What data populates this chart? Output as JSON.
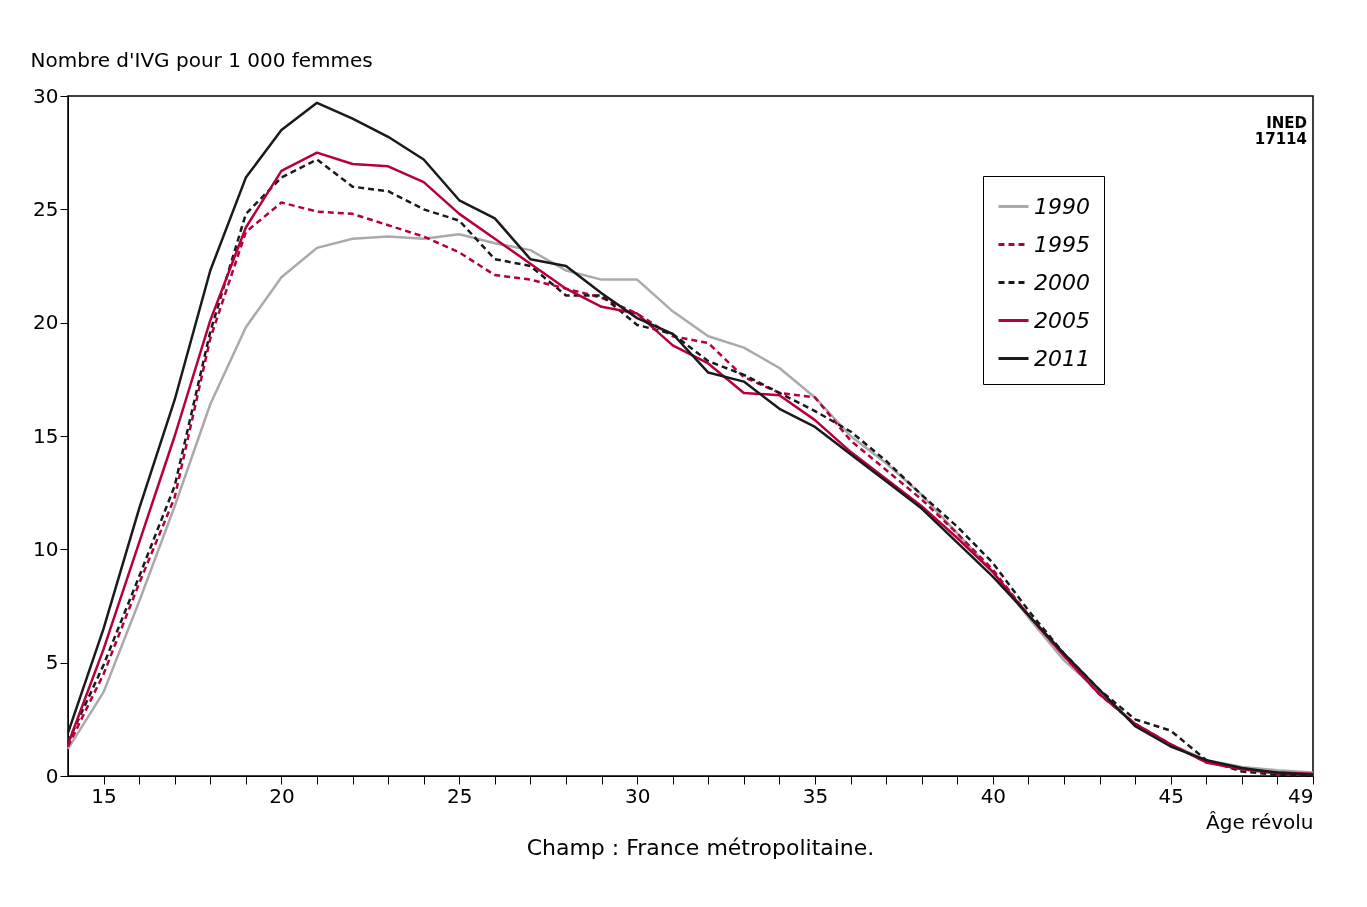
{
  "chart_data": {
    "type": "line",
    "ylabel": "Nombre d'IVG pour 1 000 femmes",
    "xlabel": "Âge révolu",
    "x": [
      14,
      15,
      16,
      17,
      18,
      19,
      20,
      21,
      22,
      23,
      24,
      25,
      26,
      27,
      28,
      29,
      30,
      31,
      32,
      33,
      34,
      35,
      36,
      37,
      38,
      39,
      40,
      41,
      42,
      43,
      44,
      45,
      46,
      47,
      48,
      49
    ],
    "series": [
      {
        "name": "1990",
        "color": "#aaaaaa",
        "line_style": "solid",
        "values": [
          1.2,
          3.7,
          7.7,
          11.9,
          16.4,
          19.8,
          22.0,
          23.3,
          23.7,
          23.8,
          23.7,
          23.9,
          23.5,
          23.2,
          22.3,
          21.9,
          21.9,
          20.5,
          19.4,
          18.9,
          18.0,
          16.7,
          15.0,
          13.8,
          12.4,
          10.7,
          9.0,
          7.0,
          5.1,
          3.7,
          2.3,
          1.4,
          0.7,
          0.4,
          0.25,
          0.15
        ]
      },
      {
        "name": "1995",
        "color": "#b5003a",
        "line_style": "dashed",
        "values": [
          1.3,
          4.5,
          8.5,
          12.3,
          19.3,
          24.0,
          25.3,
          24.9,
          24.8,
          24.3,
          23.8,
          23.1,
          22.1,
          21.9,
          21.5,
          21.1,
          20.4,
          19.4,
          19.1,
          17.6,
          16.9,
          16.7,
          14.8,
          13.5,
          12.2,
          10.7,
          9.1,
          7.1,
          5.3,
          3.6,
          2.3,
          1.4,
          0.6,
          0.3,
          0.1,
          0.05
        ]
      },
      {
        "name": "2000",
        "color": "#1a1a1a",
        "line_style": "dashed",
        "values": [
          1.5,
          4.9,
          8.8,
          12.8,
          19.6,
          24.8,
          26.4,
          27.2,
          26.0,
          25.8,
          25.0,
          24.5,
          22.8,
          22.5,
          21.2,
          21.2,
          19.9,
          19.5,
          18.3,
          17.7,
          16.9,
          16.1,
          15.2,
          13.9,
          12.4,
          11.0,
          9.4,
          7.3,
          5.4,
          3.8,
          2.5,
          2.0,
          0.7,
          0.2,
          0.05,
          0.02
        ]
      },
      {
        "name": "2005",
        "color": "#b5003a",
        "line_style": "solid",
        "values": [
          1.4,
          5.6,
          10.3,
          15.0,
          20.1,
          24.2,
          26.7,
          27.5,
          27.0,
          26.9,
          26.2,
          24.8,
          23.7,
          22.6,
          21.5,
          20.7,
          20.4,
          19.0,
          18.2,
          16.9,
          16.8,
          15.7,
          14.3,
          13.1,
          11.9,
          10.5,
          9.0,
          7.1,
          5.3,
          3.6,
          2.3,
          1.4,
          0.6,
          0.3,
          0.15,
          0.1
        ]
      },
      {
        "name": "2011",
        "color": "#1a1a1a",
        "line_style": "solid",
        "values": [
          1.9,
          6.5,
          11.8,
          16.6,
          22.3,
          26.4,
          28.5,
          29.7,
          29.0,
          28.2,
          27.2,
          25.4,
          24.6,
          22.8,
          22.5,
          21.3,
          20.2,
          19.5,
          17.8,
          17.4,
          16.2,
          15.4,
          14.2,
          13.0,
          11.8,
          10.3,
          8.8,
          7.1,
          5.4,
          3.8,
          2.2,
          1.3,
          0.7,
          0.35,
          0.15,
          0.05
        ]
      }
    ],
    "xlim": [
      14,
      49
    ],
    "xticks": [
      15,
      {
        "value": 16,
        "label": null
      },
      {
        "value": 17,
        "label": null
      },
      {
        "value": 18,
        "label": null
      },
      {
        "value": 19,
        "label": null
      },
      20,
      {
        "value": 21,
        "label": null
      },
      {
        "value": 22,
        "label": null
      },
      {
        "value": 23,
        "label": null
      },
      {
        "value": 24,
        "label": null
      },
      25,
      {
        "value": 26,
        "label": null
      },
      {
        "value": 27,
        "label": null
      },
      {
        "value": 28,
        "label": null
      },
      {
        "value": 29,
        "label": null
      },
      30,
      {
        "value": 31,
        "label": null
      },
      {
        "value": 32,
        "label": null
      },
      {
        "value": 33,
        "label": null
      },
      {
        "value": 34,
        "label": null
      },
      35,
      {
        "value": 36,
        "label": null
      },
      {
        "value": 37,
        "label": null
      },
      {
        "value": 38,
        "label": null
      },
      {
        "value": 39,
        "label": null
      },
      40,
      {
        "value": 41,
        "label": null
      },
      {
        "value": 42,
        "label": null
      },
      {
        "value": 43,
        "label": null
      },
      {
        "value": 44,
        "label": null
      },
      45,
      {
        "value": 46,
        "label": null
      },
      {
        "value": 47,
        "label": null
      },
      {
        "value": 48,
        "label": null
      },
      49
    ],
    "ylim": [
      0,
      30
    ],
    "yticks": [
      0,
      5,
      10,
      15,
      20,
      25,
      30
    ],
    "grid": false,
    "legend": "top right",
    "marker": "none",
    "annotations": [
      "INED\n17114",
      "Champ : France métropolitaine."
    ]
  }
}
